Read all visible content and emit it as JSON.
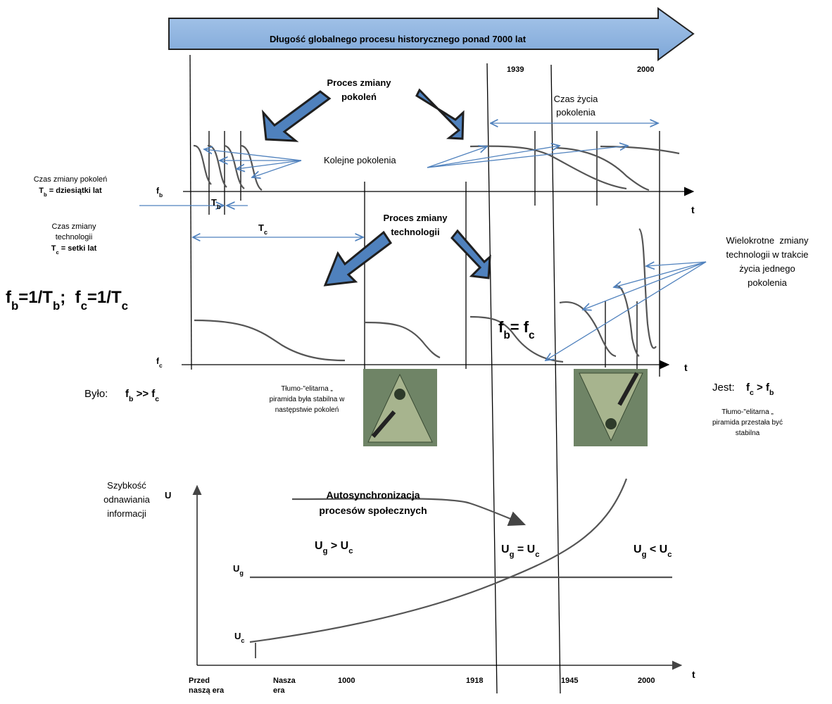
{
  "banner": "Długość globalnego procesu historycznego ponad 7000 lat",
  "top_years": [
    "1939",
    "2000"
  ],
  "generation_process": [
    "Proces zmiany",
    "pokoleń"
  ],
  "lifetime": [
    "Czas życia",
    "pokolenia"
  ],
  "successive": "Kolejne pokolenia",
  "gen_change": {
    "label": "Czas zmiany pokoleń",
    "definition": [
      "T",
      {
        "sub": "b"
      },
      " = dziesiątki lat"
    ]
  },
  "tech_change": {
    "label": [
      "Czas zmiany",
      "technologii"
    ],
    "definition": [
      "T",
      {
        "sub": "c"
      },
      " = setki lat"
    ]
  },
  "fb_axis_label": [
    "f",
    {
      "sub": "b"
    }
  ],
  "fc_axis_label": [
    "f",
    {
      "sub": "c"
    }
  ],
  "top_t": [
    "t",
    "t"
  ],
  "Tb_marker": [
    "T",
    {
      "sub": "b"
    }
  ],
  "Tc_marker": [
    "T",
    {
      "sub": "c"
    }
  ],
  "formula": [
    "f",
    {
      "sub": "b"
    },
    "=1/T",
    {
      "sub": "b"
    },
    ";  f",
    {
      "sub": "c"
    },
    "=1/T",
    {
      "sub": "c"
    }
  ],
  "tech_process": [
    "Proces zmiany",
    "technologii"
  ],
  "multiple_changes": [
    "Wielokrotne  zmiany",
    "technologii w trakcie",
    "życia jednego",
    "pokolenia"
  ],
  "fb_eq_fc": [
    "f",
    {
      "sub": "b"
    },
    "= f",
    {
      "sub": "c"
    }
  ],
  "was_label": "Było:",
  "was_relation": [
    "f",
    {
      "sub": "b"
    },
    " >> f",
    {
      "sub": "c"
    }
  ],
  "is_label": "Jest:",
  "is_relation": [
    "f",
    {
      "sub": "c"
    },
    " > f",
    {
      "sub": "b"
    }
  ],
  "pyramid_left": [
    "Tłumo-\"elitarna „",
    "piramida była stabilna w",
    "następstwie pokoleń"
  ],
  "pyramid_right": [
    "Tłumo-\"elitarna „",
    "piramida przestała być",
    "stabilna"
  ],
  "speed": [
    "Szybkość",
    "odnawiania",
    "informacji"
  ],
  "u_axis": "U",
  "autosync": [
    "Autosynchronizacja",
    "procesów społecznych"
  ],
  "ug_gt_uc": [
    "U",
    {
      "sub": "g"
    },
    " > U",
    {
      "sub": "c"
    }
  ],
  "ug_eq_uc": [
    "U",
    {
      "sub": "g"
    },
    " = U",
    {
      "sub": "c"
    }
  ],
  "ug_lt_uc": [
    "U",
    {
      "sub": "g"
    },
    " < U",
    {
      "sub": "c"
    }
  ],
  "ug_label": [
    "U",
    {
      "sub": "g"
    }
  ],
  "uc_label": [
    "U",
    {
      "sub": "c"
    }
  ],
  "bottom_axis": {
    "before": [
      "Przed",
      "naszą era"
    ],
    "our_era": [
      "Nasza",
      "era"
    ],
    "years": [
      "1000",
      "1918",
      "1945",
      "2000"
    ],
    "t": "t"
  }
}
